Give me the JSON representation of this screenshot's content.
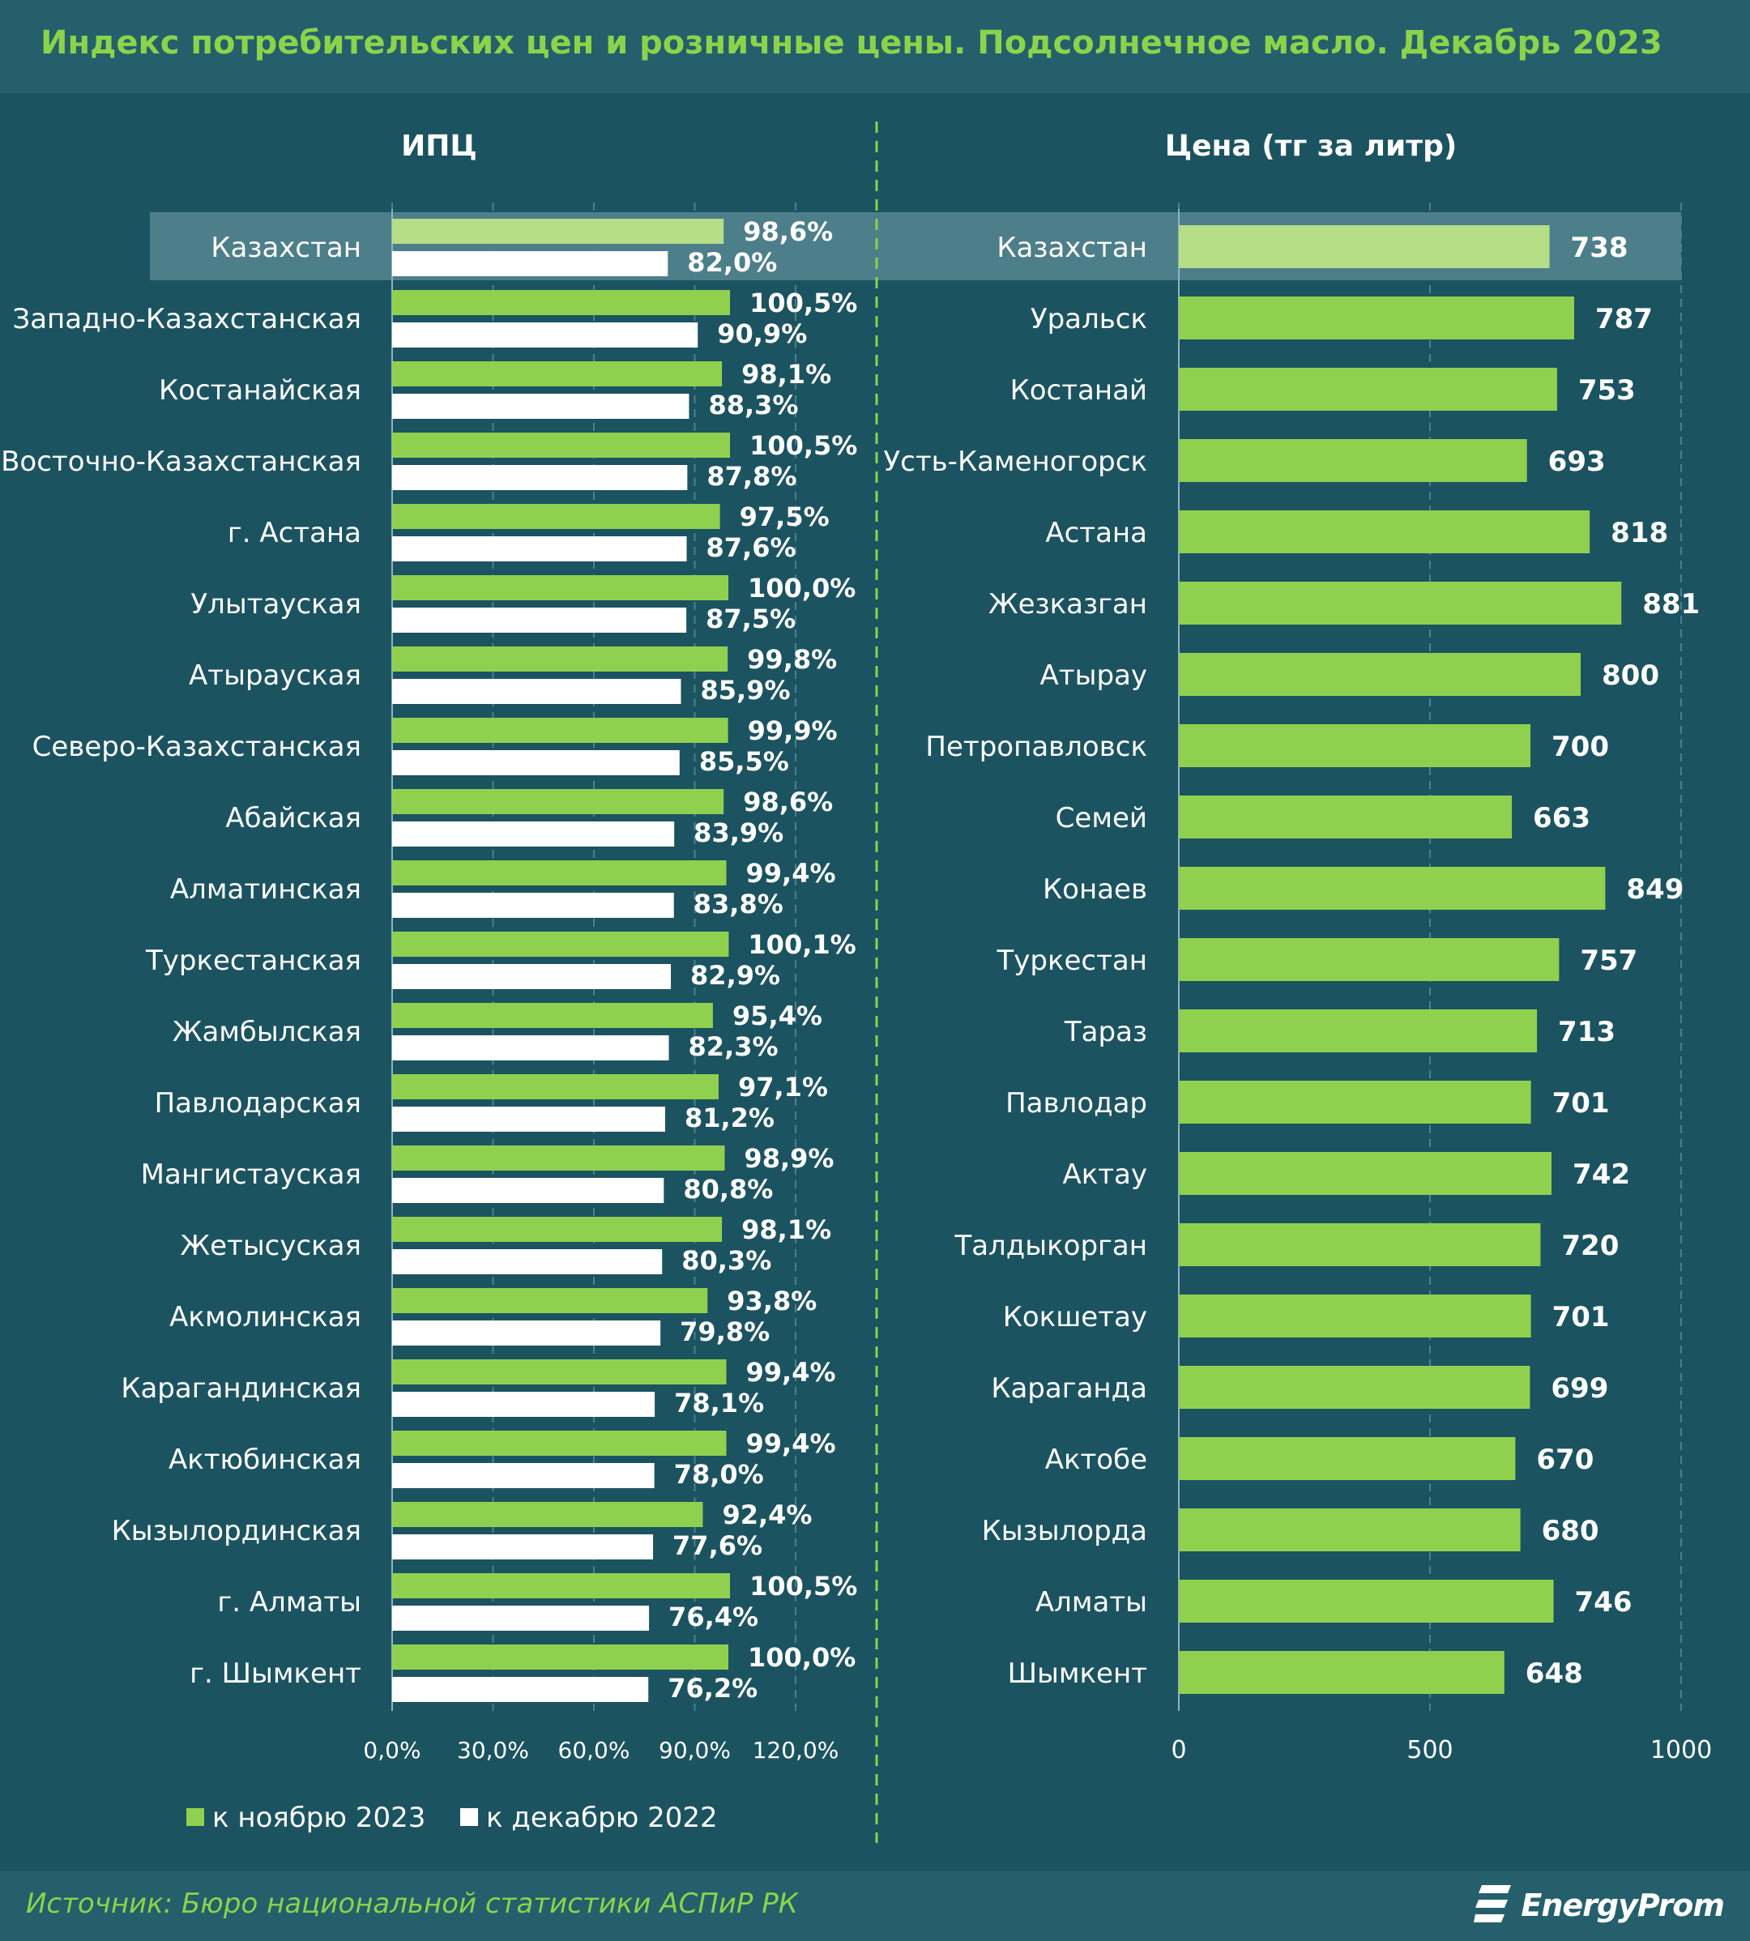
{
  "title": "Индекс потребительских цен и розничные цены. Подсолнечное масло. Декабрь 2023",
  "source": "Источник: Бюро национальной статистики АСПиР РК",
  "logo_text": "EnergyProm",
  "colors": {
    "background": "#1b5361",
    "header": "#255f6c",
    "accent_green": "#8bd34a",
    "bar_green": "#8fd14f",
    "bar_highlight": "#b5de86",
    "bar_white": "#ffffff",
    "highlight_band": "#4d7f8b"
  },
  "chart_data": [
    {
      "type": "bar",
      "orientation": "horizontal",
      "title": "ИПЦ",
      "highlight_category": "Казахстан",
      "categories": [
        "Казахстан",
        "Западно-Казахстанская",
        "Костанайская",
        "Восточно-Казахстанская",
        "г. Астана",
        "Улытауская",
        "Атырауская",
        "Северо-Казахстанская",
        "Абайская",
        "Алматинская",
        "Туркестанская",
        "Жамбылская",
        "Павлодарская",
        "Мангистауская",
        "Жетысуская",
        "Акмолинская",
        "Карагандинская",
        "Актюбинская",
        "Кызылординская",
        "г. Алматы",
        "г. Шымкент"
      ],
      "series": [
        {
          "name": "к ноябрю 2023",
          "values": [
            98.6,
            100.5,
            98.1,
            100.5,
            97.5,
            100.0,
            99.8,
            99.9,
            98.6,
            99.4,
            100.1,
            95.4,
            97.1,
            98.9,
            98.1,
            93.8,
            99.4,
            99.4,
            92.4,
            100.5,
            100.0
          ],
          "labels": [
            "98,6%",
            "100,5%",
            "98,1%",
            "100,5%",
            "97,5%",
            "100,0%",
            "99,8%",
            "99,9%",
            "98,6%",
            "99,4%",
            "100,1%",
            "95,4%",
            "97,1%",
            "98,9%",
            "98,1%",
            "93,8%",
            "99,4%",
            "99,4%",
            "92,4%",
            "100,5%",
            "100,0%"
          ]
        },
        {
          "name": "к декабрю 2022",
          "values": [
            82.0,
            90.9,
            88.3,
            87.8,
            87.6,
            87.5,
            85.9,
            85.5,
            83.9,
            83.8,
            82.9,
            82.3,
            81.2,
            80.8,
            80.3,
            79.8,
            78.1,
            78.0,
            77.6,
            76.4,
            76.2
          ],
          "labels": [
            "82,0%",
            "90,9%",
            "88,3%",
            "87,8%",
            "87,6%",
            "87,5%",
            "85,9%",
            "85,5%",
            "83,9%",
            "83,8%",
            "82,9%",
            "82,3%",
            "81,2%",
            "80,8%",
            "80,3%",
            "79,8%",
            "78,1%",
            "78,0%",
            "77,6%",
            "76,4%",
            "76,2%"
          ]
        }
      ],
      "xlim": [
        0,
        120
      ],
      "xticks": [
        0,
        30,
        60,
        90,
        120
      ],
      "xtick_labels": [
        "0,0%",
        "30,0%",
        "60,0%",
        "90,0%",
        "120,0%"
      ],
      "legend_position": "bottom"
    },
    {
      "type": "bar",
      "orientation": "horizontal",
      "title": "Цена (тг за литр)",
      "highlight_category": "Казахстан",
      "categories": [
        "Казахстан",
        "Уральск",
        "Костанай",
        "Усть-Каменогорск",
        "Астана",
        "Жезказган",
        "Атырау",
        "Петропавловск",
        "Семей",
        "Конаев",
        "Туркестан",
        "Тараз",
        "Павлодар",
        "Актау",
        "Талдыкорган",
        "Кокшетау",
        "Караганда",
        "Актобе",
        "Кызылорда",
        "Алматы",
        "Шымкент"
      ],
      "values": [
        738,
        787,
        753,
        693,
        818,
        881,
        800,
        700,
        663,
        849,
        757,
        713,
        701,
        742,
        720,
        701,
        699,
        670,
        680,
        746,
        648
      ],
      "labels": [
        "738",
        "787",
        "753",
        "693",
        "818",
        "881",
        "800",
        "700",
        "663",
        "849",
        "757",
        "713",
        "701",
        "742",
        "720",
        "701",
        "699",
        "670",
        "680",
        "746",
        "648"
      ],
      "xlim": [
        0,
        1000
      ],
      "xticks": [
        0,
        500,
        1000
      ],
      "xtick_labels": [
        "0",
        "500",
        "1000"
      ]
    }
  ]
}
